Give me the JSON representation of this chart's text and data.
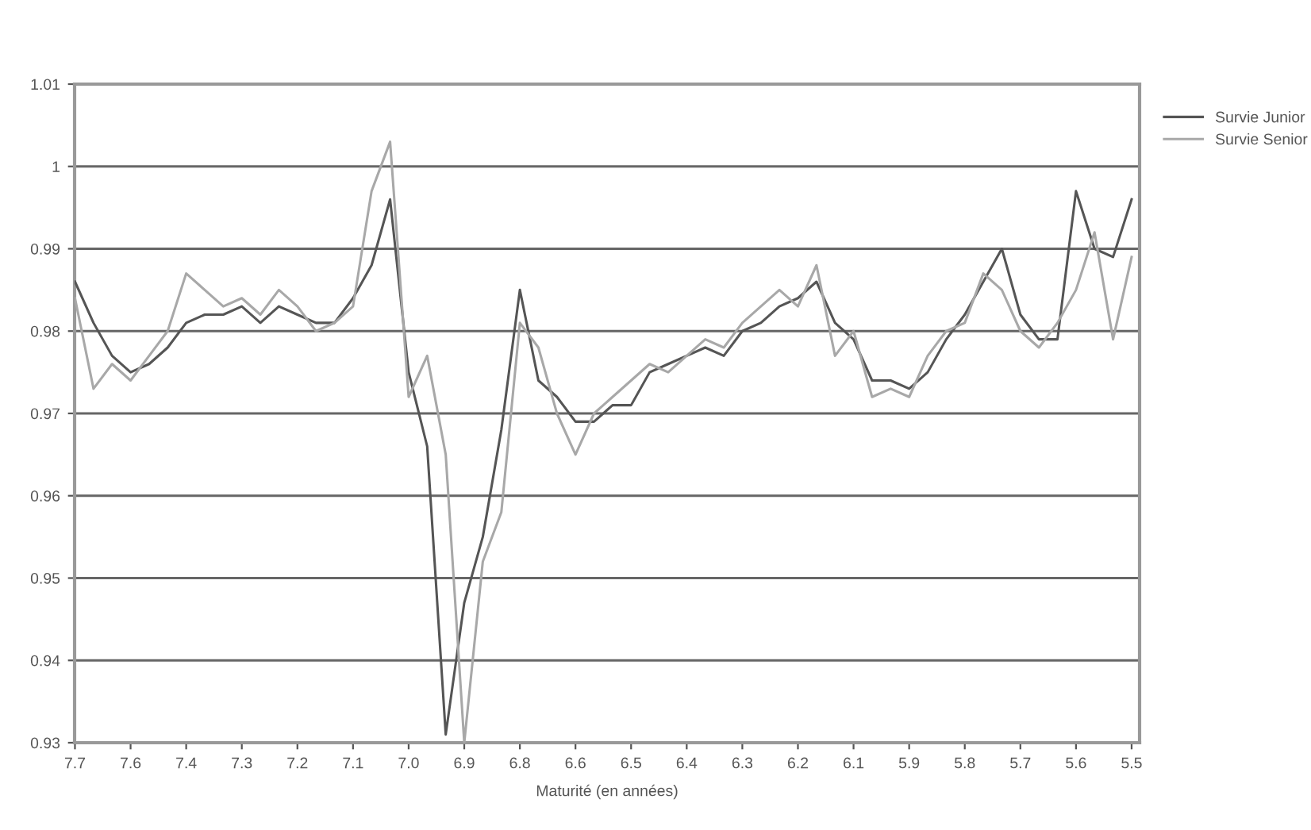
{
  "chart_data": {
    "type": "line",
    "xlabel": "Maturité (en années)",
    "categories": [
      "7.7",
      null,
      null,
      "7.6",
      null,
      null,
      "7.4",
      null,
      null,
      "7.3",
      null,
      null,
      "7.2",
      null,
      null,
      "7.1",
      null,
      null,
      "7.0",
      null,
      null,
      "6.9",
      null,
      null,
      "6.8",
      null,
      null,
      "6.6",
      null,
      null,
      "6.5",
      null,
      null,
      "6.4",
      null,
      null,
      "6.3",
      null,
      null,
      "6.2",
      null,
      null,
      "6.1",
      null,
      null,
      "5.9",
      null,
      null,
      "5.8",
      null,
      null,
      "5.7",
      null,
      null,
      "5.6",
      null,
      null,
      "5.5"
    ],
    "series": [
      {
        "name": "Survie Junior",
        "color": "#555555",
        "values": [
          0.986,
          0.981,
          0.977,
          0.975,
          0.976,
          0.978,
          0.981,
          0.982,
          0.982,
          0.983,
          0.981,
          0.983,
          0.982,
          0.981,
          0.981,
          0.984,
          0.988,
          0.996,
          0.975,
          0.966,
          0.931,
          0.947,
          0.955,
          0.968,
          0.985,
          0.974,
          0.972,
          0.969,
          0.969,
          0.971,
          0.971,
          0.975,
          0.976,
          0.977,
          0.978,
          0.977,
          0.98,
          0.981,
          0.983,
          0.984,
          0.986,
          0.981,
          0.979,
          0.974,
          0.974,
          0.973,
          0.975,
          0.979,
          0.982,
          0.986,
          0.99,
          0.982,
          0.979,
          0.979,
          0.997,
          0.99,
          0.989,
          0.996
        ]
      },
      {
        "name": "Survie Senior",
        "color": "#a8a8a8",
        "values": [
          0.984,
          0.973,
          0.976,
          0.974,
          0.977,
          0.98,
          0.987,
          0.985,
          0.983,
          0.984,
          0.982,
          0.985,
          0.983,
          0.98,
          0.981,
          0.983,
          0.997,
          1.003,
          0.972,
          0.977,
          0.965,
          0.93,
          0.952,
          0.958,
          0.981,
          0.978,
          0.97,
          0.965,
          0.97,
          0.972,
          0.974,
          0.976,
          0.975,
          0.977,
          0.979,
          0.978,
          0.981,
          0.983,
          0.985,
          0.983,
          0.988,
          0.977,
          0.98,
          0.972,
          0.973,
          0.972,
          0.977,
          0.98,
          0.981,
          0.987,
          0.985,
          0.98,
          0.978,
          0.981,
          0.985,
          0.992,
          0.979,
          0.989
        ]
      }
    ],
    "ylim": [
      0.93,
      1.01
    ],
    "yticks": [
      0.93,
      0.94,
      0.95,
      0.96,
      0.97,
      0.98,
      0.99,
      1,
      1.01
    ],
    "grid": "y",
    "legend": "top right",
    "marker": "none",
    "line_style": "solid"
  }
}
